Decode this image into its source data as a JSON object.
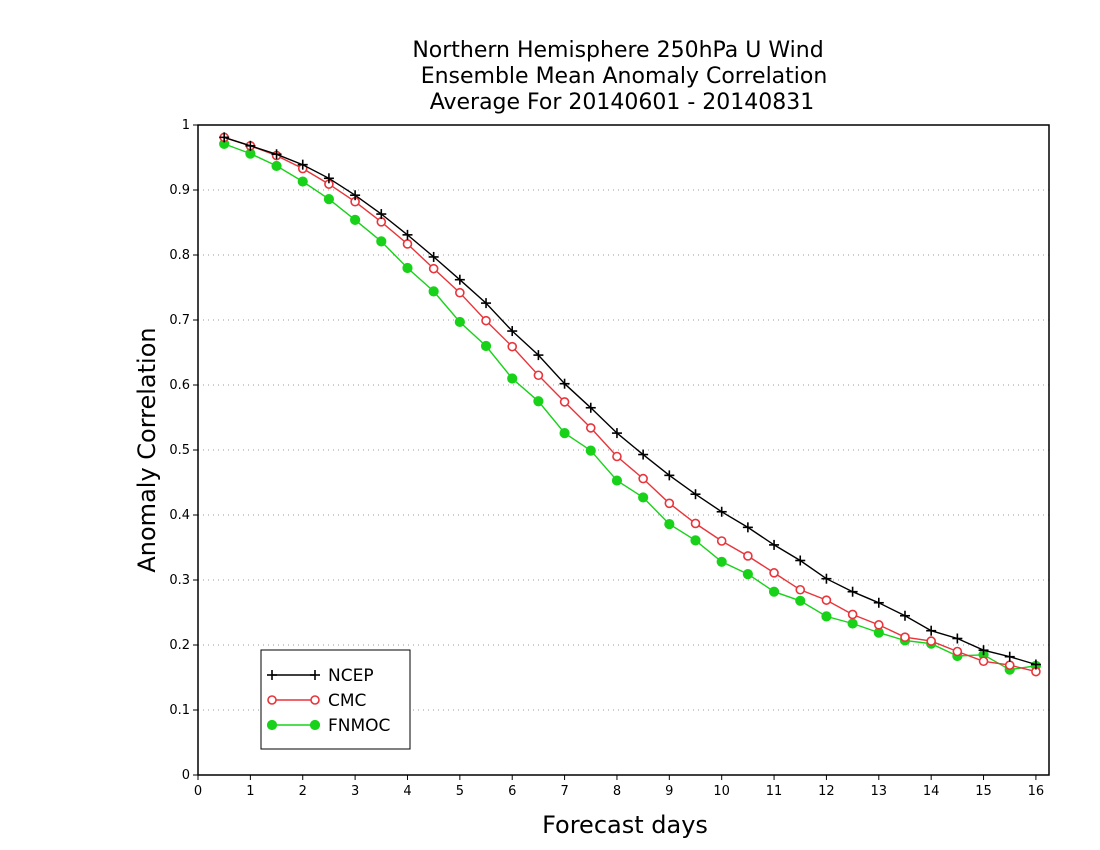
{
  "chart_data": {
    "type": "line",
    "title": [
      "Northern Hemisphere 250hPa U Wind",
      "Ensemble Mean Anomaly Correlation",
      "Average For 20140601 - 20140831"
    ],
    "xlabel": "Forecast days",
    "ylabel": "Anomaly Correlation",
    "xlim": [
      0,
      16.25
    ],
    "ylim": [
      0,
      1
    ],
    "xticks": [
      0,
      1,
      2,
      3,
      4,
      5,
      6,
      7,
      8,
      9,
      10,
      11,
      12,
      13,
      14,
      15,
      16
    ],
    "yticks": [
      0,
      0.1,
      0.2,
      0.3,
      0.4,
      0.5,
      0.6,
      0.7,
      0.8,
      0.9,
      1
    ],
    "ytick_labels": [
      "0",
      "0.1",
      "0.2",
      "0.3",
      "0.4",
      "0.5",
      "0.6",
      "0.7",
      "0.8",
      "0.9",
      "1"
    ],
    "xtick_labels": [
      "0",
      "1",
      "2",
      "3",
      "4",
      "5",
      "6",
      "7",
      "8",
      "9",
      "10",
      "11",
      "12",
      "13",
      "14",
      "15",
      "16"
    ],
    "grid": "horizontal-dotted",
    "legend_position": "bottom-left",
    "x": [
      0.5,
      1,
      1.5,
      2,
      2.5,
      3,
      3.5,
      4,
      4.5,
      5,
      5.5,
      6,
      6.5,
      7,
      7.5,
      8,
      8.5,
      9,
      9.5,
      10,
      10.5,
      11,
      11.5,
      12,
      12.5,
      13,
      13.5,
      14,
      14.5,
      15,
      15.5,
      16
    ],
    "series": [
      {
        "name": "NCEP",
        "color": "#000000",
        "marker": "plus",
        "values": [
          0.981,
          0.968,
          0.955,
          0.939,
          0.918,
          0.892,
          0.863,
          0.831,
          0.797,
          0.762,
          0.726,
          0.683,
          0.646,
          0.602,
          0.565,
          0.526,
          0.493,
          0.461,
          0.432,
          0.405,
          0.381,
          0.354,
          0.33,
          0.302,
          0.282,
          0.265,
          0.245,
          0.222,
          0.21,
          0.192,
          0.182,
          0.17
        ]
      },
      {
        "name": "CMC",
        "color": "#e8343a",
        "marker": "open-circle",
        "values": [
          0.981,
          0.968,
          0.953,
          0.933,
          0.909,
          0.882,
          0.851,
          0.817,
          0.779,
          0.742,
          0.699,
          0.659,
          0.615,
          0.574,
          0.534,
          0.49,
          0.456,
          0.418,
          0.387,
          0.36,
          0.337,
          0.311,
          0.285,
          0.269,
          0.247,
          0.231,
          0.212,
          0.206,
          0.19,
          0.175,
          0.169,
          0.159
        ]
      },
      {
        "name": "FNMOC",
        "color": "#18d21a",
        "marker": "filled-circle",
        "values": [
          0.971,
          0.956,
          0.937,
          0.913,
          0.886,
          0.854,
          0.821,
          0.78,
          0.744,
          0.697,
          0.66,
          0.61,
          0.575,
          0.526,
          0.499,
          0.453,
          0.427,
          0.386,
          0.361,
          0.328,
          0.309,
          0.282,
          0.268,
          0.244,
          0.233,
          0.219,
          0.207,
          0.202,
          0.183,
          0.185,
          0.162,
          0.168
        ]
      }
    ]
  }
}
